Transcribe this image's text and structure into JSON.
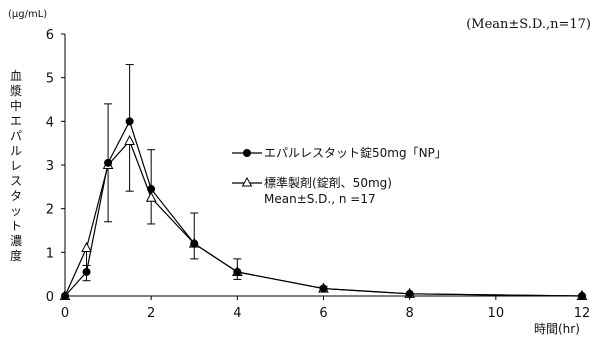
{
  "chart_data": {
    "type": "line",
    "caption": "(Mean±S.D.,n=17)",
    "ylabel_unit": "(μg/mL)",
    "ylabel": "血漿中エパルレスタット濃度",
    "xlabel": "時間(hr)",
    "xlim": [
      0,
      12
    ],
    "ylim": [
      0,
      6
    ],
    "xticks": [
      0,
      2,
      4,
      6,
      8,
      10,
      12
    ],
    "yticks": [
      0,
      1,
      2,
      3,
      4,
      5,
      6
    ],
    "grid": false,
    "legend_position": "right",
    "series": [
      {
        "name": "エパルレスタット錠50mg「NP」",
        "marker": "circle-filled",
        "color": "#000000",
        "x": [
          0,
          0.5,
          1,
          1.5,
          2,
          3,
          4,
          6,
          8,
          12
        ],
        "y": [
          0,
          0.55,
          3.05,
          4.0,
          2.45,
          1.2,
          0.55,
          0.17,
          0.05,
          0.0
        ],
        "sd_upper": [
          0,
          0.7,
          4.4,
          5.3,
          3.35,
          1.9,
          0.85,
          0.22,
          0.07,
          0.0
        ]
      },
      {
        "name": "標準製剤(錠剤、50mg)",
        "name_line2": "Mean±S.D., n =17",
        "marker": "triangle-open",
        "color": "#000000",
        "x": [
          0,
          0.5,
          1,
          1.5,
          2,
          3,
          4,
          6,
          8,
          12
        ],
        "y": [
          0,
          1.1,
          3.0,
          3.55,
          2.25,
          1.2,
          0.55,
          0.17,
          0.05,
          0.0
        ],
        "sd_lower": [
          0,
          0.35,
          1.7,
          2.4,
          1.65,
          0.85,
          0.38,
          0.12,
          0.03,
          0.0
        ]
      }
    ]
  }
}
